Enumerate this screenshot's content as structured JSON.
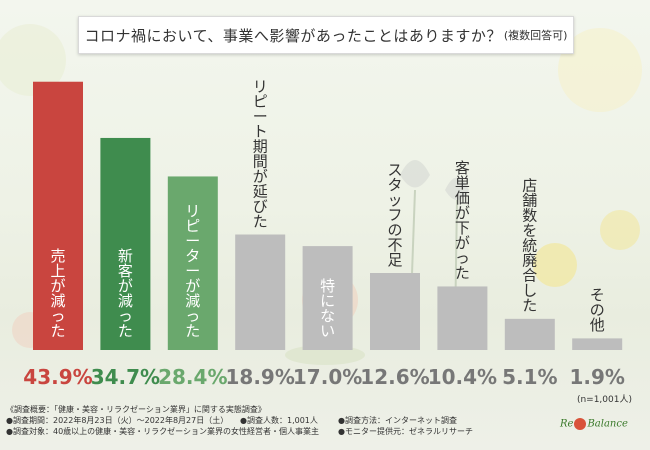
{
  "title": {
    "main": "コロナ禍において、事業へ影響があったことはありますか？",
    "note": "(複数回答可)"
  },
  "chart_data": {
    "type": "bar",
    "categories": [
      "売上が減った",
      "新客が減った",
      "リピーターが減った",
      "リピート期間が延びた",
      "特にない",
      "スタッフの不足",
      "客単価が下がった",
      "店舗数を統廃合した",
      "その他"
    ],
    "values": [
      43.9,
      34.7,
      28.4,
      18.9,
      17.0,
      12.6,
      10.4,
      5.1,
      1.9
    ],
    "value_labels": [
      "43.9%",
      "34.7%",
      "28.4%",
      "18.9%",
      "17.0%",
      "12.6%",
      "10.4%",
      "5.1%",
      "1.9%"
    ],
    "ylim": [
      0,
      45
    ],
    "colors": {
      "bars": [
        "#c9453f",
        "#3f8c4e",
        "#6aa86d",
        "#bdbdbd",
        "#bdbdbd",
        "#bdbdbd",
        "#bdbdbd",
        "#bdbdbd",
        "#bdbdbd"
      ],
      "value_labels": [
        "#c9453f",
        "#3f8c4e",
        "#6aa86d",
        "#777777",
        "#777777",
        "#777777",
        "#777777",
        "#777777",
        "#777777"
      ],
      "inner_text": "#ffffff",
      "outer_text": "#333333"
    }
  },
  "sample_size": "(n=1,001人)",
  "footnotes": {
    "line1": "《調査概要：「健康・美容・リラクゼーション業界」に関する実態調査》",
    "line2_a": "●調査期間：2022年8月23日（火）～2022年8月27日（土）",
    "line2_b": "●調査人数：1,001人",
    "line2_c": "●調査方法：インターネット調査",
    "line3_a": "●調査対象：40歳以上の健康・美容・リラクゼーション業界の女性経営者・個人事業主",
    "line3_b": "●モニター提供元：ゼネラルリサーチ"
  },
  "logo": {
    "pre": "Re",
    "post": "Balance"
  }
}
